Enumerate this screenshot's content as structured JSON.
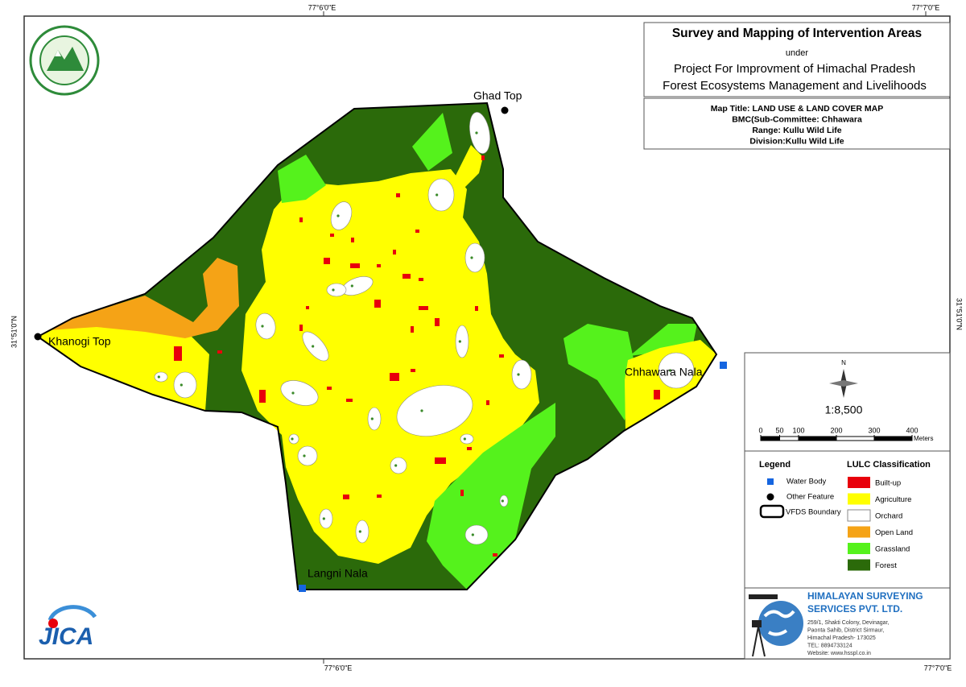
{
  "grid_labels": {
    "top": [
      "77°6'0\"E",
      "77°7'0\"E"
    ],
    "bottom": [
      "77°6'0\"E",
      "77°7'0\"E"
    ],
    "left": "31°51'0\"N",
    "right": "31°51'0\"N"
  },
  "header": {
    "title": "Survey and Mapping of Intervention Areas",
    "under": "under",
    "project_line1": "Project For Improvment of Himachal Pradesh",
    "project_line2": "Forest Ecosystems Management and Livelihoods"
  },
  "map_info": [
    "Map Title: LAND USE & LAND COVER MAP",
    "BMC(Sub-Committee: Chhawara",
    "Range: Kullu Wild Life",
    "Division:Kullu Wild Life"
  ],
  "places": [
    "Ghad Top",
    "Khanogi Top",
    "Chhawara Nala",
    "Langni Nala"
  ],
  "north": "N",
  "scale": "1:8,500",
  "scale_bar": {
    "ticks": [
      0,
      50,
      100,
      200,
      300,
      400
    ],
    "unit": "Meters"
  },
  "legend": {
    "title": "Legend",
    "items": [
      "Water Body",
      "Other Feature",
      "VFDS  Boundary"
    ]
  },
  "lulc": {
    "title": "LULC Classification",
    "items": [
      {
        "label": "Built-up",
        "color": "#e8000b"
      },
      {
        "label": "Agriculture",
        "color": "#ffff00"
      },
      {
        "label": "Orchard",
        "color": "#ffffff"
      },
      {
        "label": "Open Land",
        "color": "#f5a316"
      },
      {
        "label": "Grassland",
        "color": "#55f21c"
      },
      {
        "label": "Forest",
        "color": "#2b6a0a"
      }
    ]
  },
  "company": {
    "name_line1": "HIMALAYAN SURVEYING",
    "name_line2": "SERVICES PVT. LTD.",
    "address": [
      "259/1, Shakti Colony, Devinagar,",
      "Paonta Sahib, District Sirmaur,",
      "Himachal Pradesh- 173025",
      "TEL: 8894733124",
      "Website: www.hsspl.co.in"
    ]
  },
  "jica": "JICA"
}
